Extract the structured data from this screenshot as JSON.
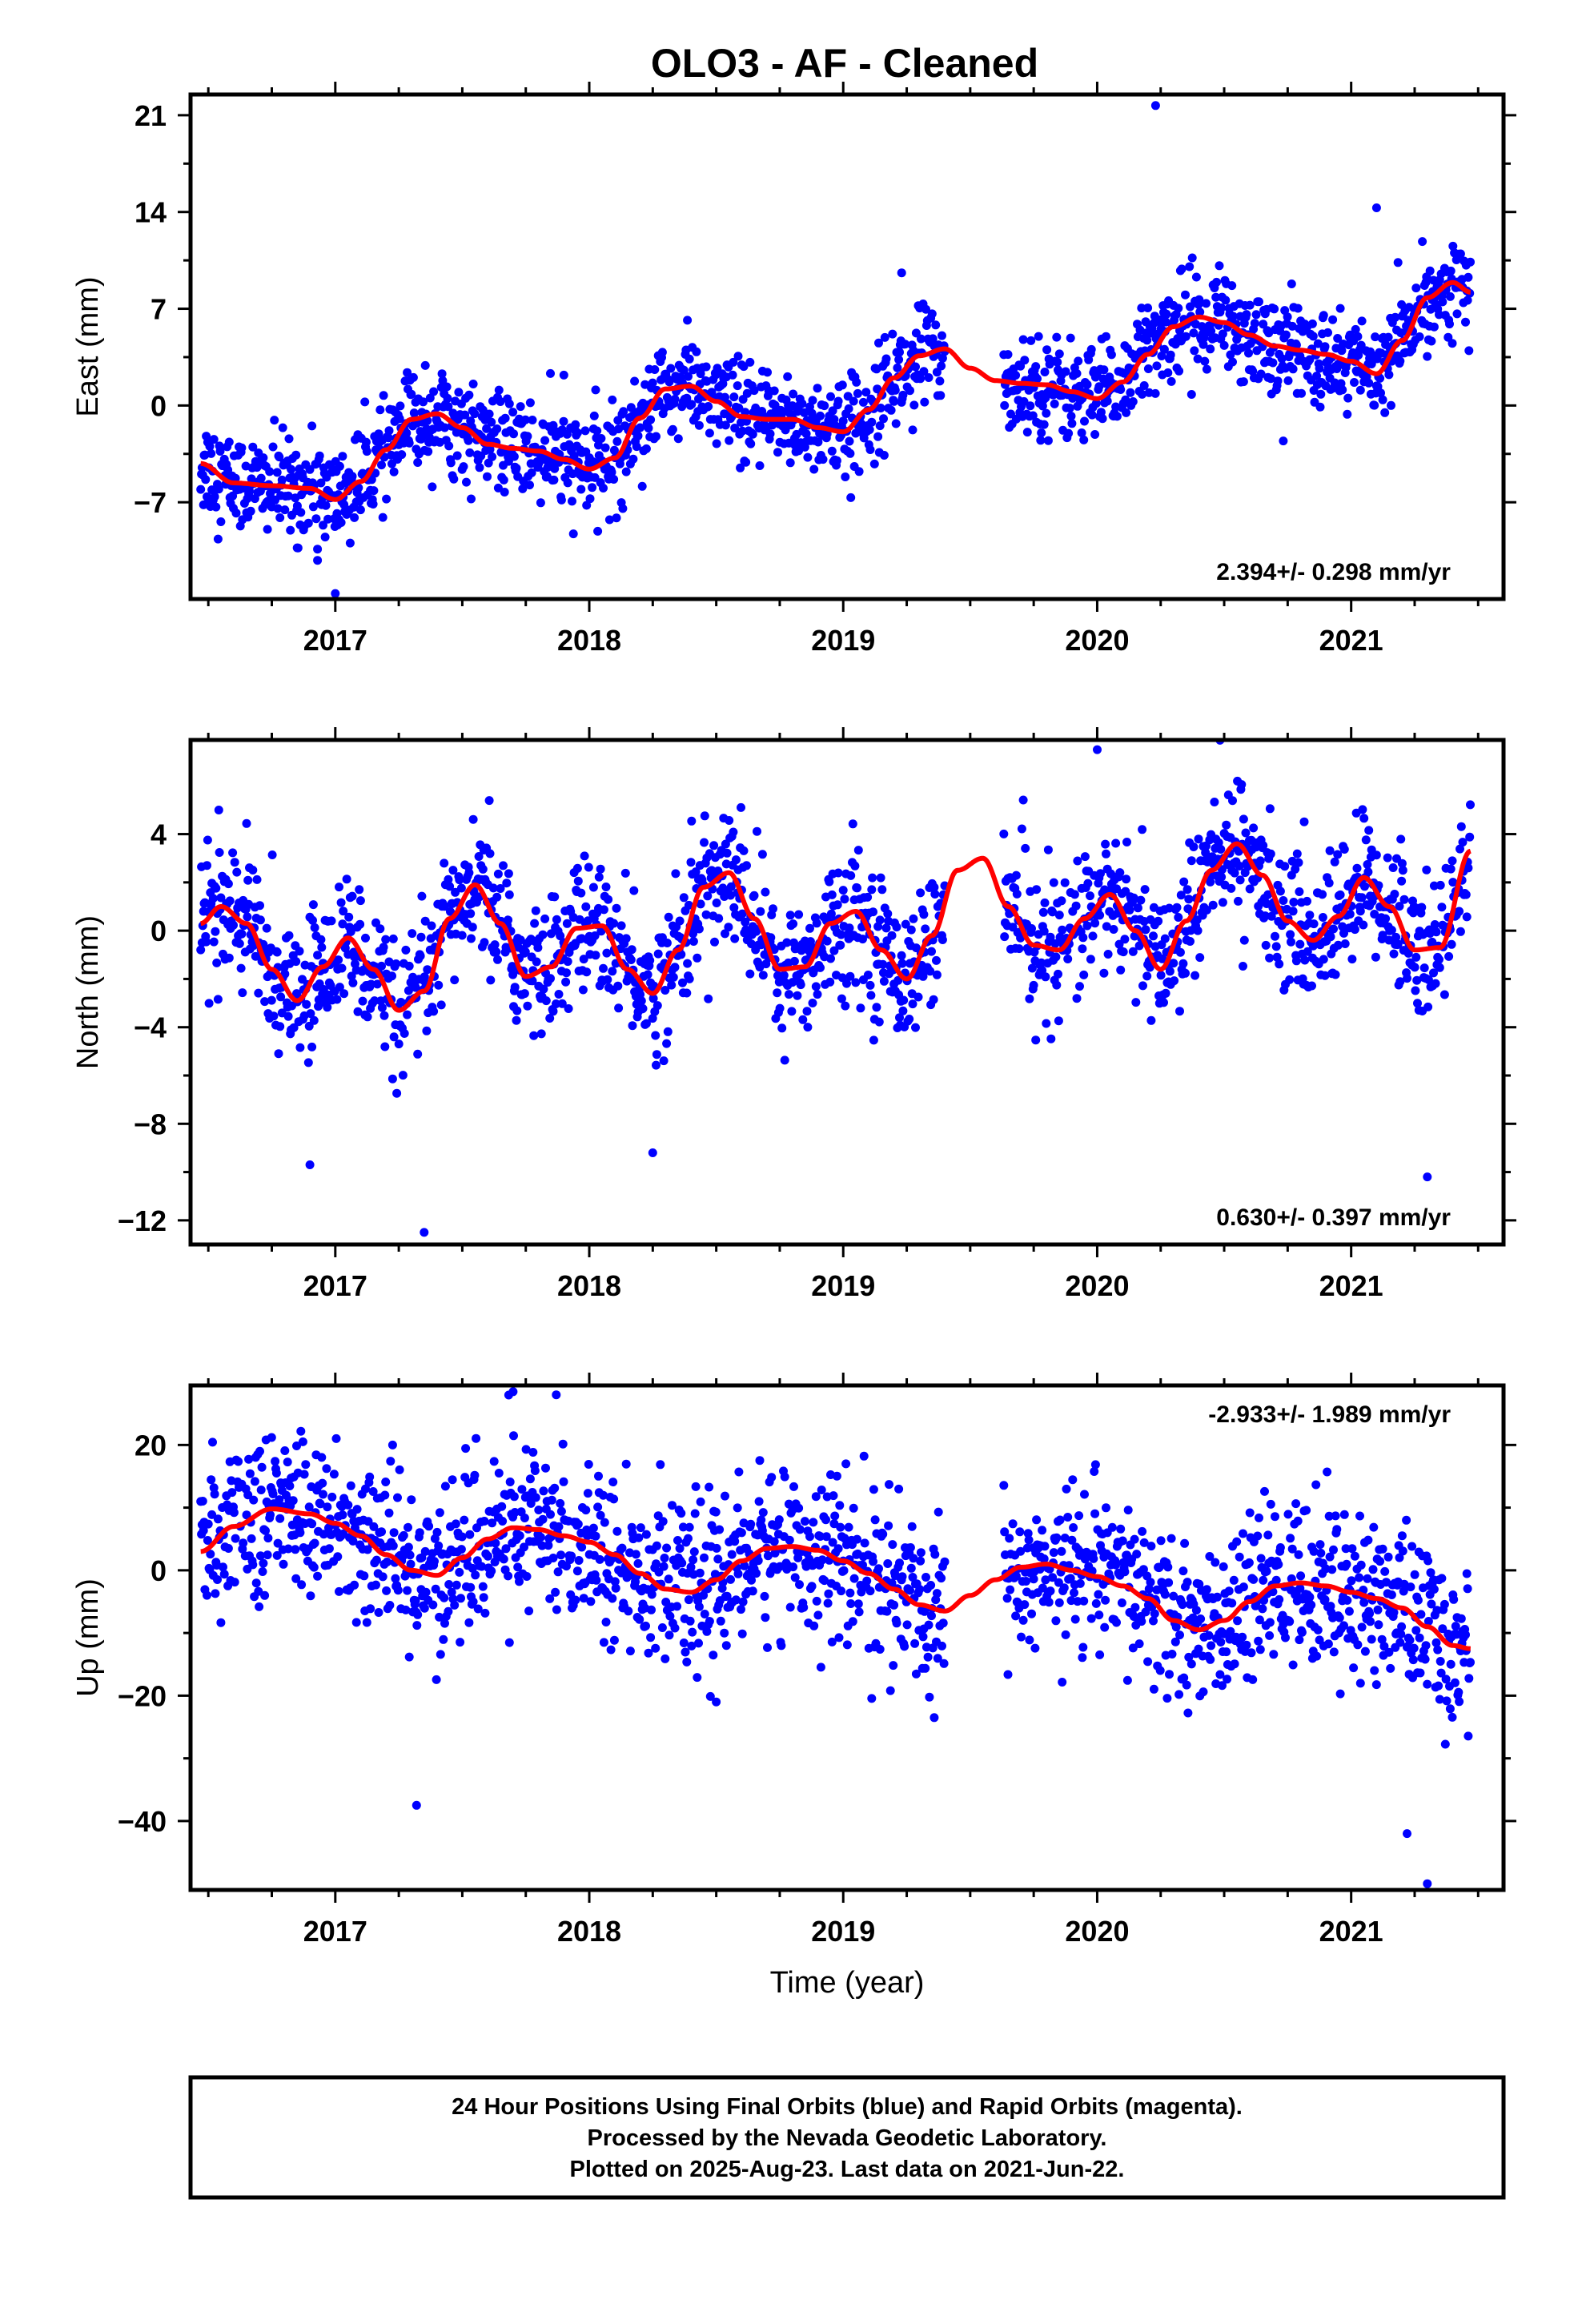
{
  "title": "OLO3  - AF - Cleaned",
  "x_axis": {
    "label": "Time (year)",
    "range": [
      2016.43,
      2021.6
    ],
    "ticks": [
      2017,
      2018,
      2019,
      2020,
      2021
    ]
  },
  "colors": {
    "points": "#0000ff",
    "model": "#ff0000",
    "frame": "#000000"
  },
  "caption": [
    "24 Hour Positions Using Final Orbits (blue) and Rapid Orbits (magenta).",
    "Processed by the Nevada Geodetic Laboratory.",
    "Plotted on 2025-Aug-23. Last data on 2021-Jun-22."
  ],
  "chart_data": [
    {
      "type": "scatter",
      "name": "east",
      "ylabel": "East (mm)",
      "ylim": [
        -14,
        22.5
      ],
      "yticks": [
        -7,
        0,
        7,
        14,
        21
      ],
      "rate_text": "2.394+/- 0.298 mm/yr",
      "rate_position": "bottom-right",
      "data_start": 2016.47,
      "data_end": 2021.47,
      "gaps": [
        [
          2019.4,
          2019.63
        ]
      ],
      "scatter": 1.8,
      "model": {
        "x": [
          2016.47,
          2016.6,
          2016.75,
          2016.9,
          2017.0,
          2017.1,
          2017.2,
          2017.3,
          2017.4,
          2017.5,
          2017.6,
          2017.7,
          2017.8,
          2017.9,
          2018.0,
          2018.1,
          2018.2,
          2018.3,
          2018.4,
          2018.5,
          2018.6,
          2018.7,
          2018.8,
          2018.9,
          2019.0,
          2019.1,
          2019.2,
          2019.3,
          2019.4,
          2019.5,
          2019.6,
          2019.7,
          2019.8,
          2019.9,
          2020.0,
          2020.1,
          2020.2,
          2020.3,
          2020.4,
          2020.5,
          2020.6,
          2020.7,
          2020.8,
          2020.9,
          2021.0,
          2021.1,
          2021.2,
          2021.3,
          2021.4,
          2021.47
        ],
        "y": [
          -4.2,
          -5.6,
          -5.8,
          -6.0,
          -6.8,
          -5.5,
          -3.2,
          -1.0,
          -0.6,
          -1.6,
          -2.8,
          -3.1,
          -3.3,
          -3.9,
          -4.6,
          -3.8,
          -0.9,
          1.2,
          1.4,
          0.3,
          -0.8,
          -1.0,
          -1.0,
          -1.6,
          -1.9,
          -0.3,
          2.0,
          3.6,
          4.1,
          2.7,
          1.8,
          1.6,
          1.5,
          1.0,
          0.5,
          1.7,
          3.7,
          5.7,
          6.4,
          6.0,
          5.1,
          4.3,
          4.0,
          3.7,
          3.2,
          2.3,
          4.7,
          7.8,
          8.9,
          8.2
        ]
      },
      "outliers": [
        [
          2017.9,
          2.2
        ],
        [
          2017.0,
          -13.6
        ],
        [
          2020.23,
          21.7
        ],
        [
          2021.1,
          14.3
        ],
        [
          2019.23,
          9.6
        ],
        [
          2016.85,
          -10.3
        ],
        [
          2016.93,
          -11.2
        ]
      ]
    },
    {
      "type": "scatter",
      "name": "north",
      "ylabel": "North (mm)",
      "ylim": [
        -13,
        7.9
      ],
      "yticks": [
        -12,
        -8,
        -4,
        0,
        4
      ],
      "rate_text": "0.630+/- 0.397 mm/yr",
      "rate_position": "bottom-right",
      "data_start": 2016.47,
      "data_end": 2021.47,
      "gaps": [
        [
          2019.4,
          2019.63
        ]
      ],
      "scatter": 1.4,
      "model": {
        "x": [
          2016.47,
          2016.55,
          2016.65,
          2016.75,
          2016.85,
          2016.95,
          2017.05,
          2017.15,
          2017.25,
          2017.35,
          2017.45,
          2017.55,
          2017.65,
          2017.75,
          2017.85,
          2017.95,
          2018.05,
          2018.15,
          2018.25,
          2018.35,
          2018.45,
          2018.55,
          2018.65,
          2018.75,
          2018.85,
          2018.95,
          2019.05,
          2019.15,
          2019.25,
          2019.35,
          2019.45,
          2019.55,
          2019.65,
          2019.75,
          2019.85,
          2019.95,
          2020.05,
          2020.15,
          2020.25,
          2020.35,
          2020.45,
          2020.55,
          2020.65,
          2020.75,
          2020.85,
          2020.95,
          2021.05,
          2021.15,
          2021.25,
          2021.35,
          2021.47
        ],
        "y": [
          0.3,
          1.0,
          0.3,
          -1.6,
          -2.9,
          -1.5,
          -0.3,
          -1.6,
          -3.3,
          -2.5,
          0.5,
          1.9,
          0.3,
          -1.9,
          -1.5,
          0.1,
          0.2,
          -1.6,
          -2.6,
          -0.8,
          1.8,
          2.4,
          0.5,
          -1.6,
          -1.5,
          0.3,
          0.8,
          -0.8,
          -2.0,
          -0.2,
          2.5,
          3.0,
          1.0,
          -0.6,
          -0.8,
          0.5,
          1.5,
          0.0,
          -1.6,
          0.4,
          2.5,
          3.6,
          2.3,
          0.4,
          -0.4,
          0.6,
          2.2,
          1.0,
          -0.8,
          -0.7,
          3.3
        ]
      },
      "outliers": [
        [
          2017.35,
          -12.5
        ],
        [
          2020.0,
          7.5
        ],
        [
          2021.3,
          -10.2
        ],
        [
          2016.9,
          -9.7
        ],
        [
          2018.25,
          -9.2
        ]
      ]
    },
    {
      "type": "scatter",
      "name": "up",
      "ylabel": "Up (mm)",
      "ylim": [
        -51,
        29.5
      ],
      "yticks": [
        -40,
        -20,
        0,
        20
      ],
      "rate_text": "-2.933+/- 1.989 mm/yr",
      "rate_position": "top-right",
      "data_start": 2016.47,
      "data_end": 2021.47,
      "gaps": [
        [
          2019.4,
          2019.63
        ]
      ],
      "scatter": 6.5,
      "model": {
        "x": [
          2016.47,
          2016.6,
          2016.75,
          2016.9,
          2017.0,
          2017.1,
          2017.2,
          2017.3,
          2017.4,
          2017.5,
          2017.6,
          2017.7,
          2017.8,
          2017.9,
          2018.0,
          2018.1,
          2018.2,
          2018.3,
          2018.4,
          2018.5,
          2018.6,
          2018.7,
          2018.8,
          2018.9,
          2019.0,
          2019.1,
          2019.2,
          2019.3,
          2019.4,
          2019.5,
          2019.6,
          2019.7,
          2019.8,
          2019.9,
          2020.0,
          2020.1,
          2020.2,
          2020.3,
          2020.4,
          2020.5,
          2020.6,
          2020.7,
          2020.8,
          2020.9,
          2021.0,
          2021.1,
          2021.2,
          2021.3,
          2021.4,
          2021.47
        ],
        "y": [
          3.0,
          7.0,
          9.8,
          9.0,
          7.5,
          5.5,
          2.5,
          0.0,
          -0.8,
          2.0,
          5.0,
          6.8,
          6.5,
          5.5,
          4.5,
          2.5,
          -0.5,
          -3.0,
          -3.5,
          -1.5,
          1.5,
          3.5,
          3.8,
          3.2,
          1.5,
          -0.5,
          -3.0,
          -5.5,
          -6.5,
          -4.0,
          -1.5,
          0.5,
          1.0,
          0.0,
          -1.0,
          -2.5,
          -4.5,
          -8.0,
          -9.5,
          -8.0,
          -5.0,
          -2.5,
          -2.0,
          -2.5,
          -3.5,
          -4.5,
          -6.0,
          -9.0,
          -12.0,
          -12.5
        ]
      },
      "outliers": [
        [
          2017.32,
          -37.5
        ],
        [
          2021.3,
          -50.0
        ],
        [
          2021.22,
          -42.0
        ],
        [
          2017.7,
          28.5
        ],
        [
          2017.87,
          28.0
        ],
        [
          2018.5,
          -21.0
        ]
      ]
    }
  ]
}
